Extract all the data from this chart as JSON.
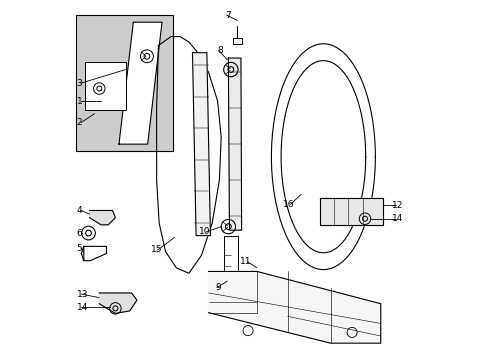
{
  "title": "",
  "bg_color": "#ffffff",
  "line_color": "#000000",
  "gray_box_color": "#cccccc",
  "figsize": [
    4.89,
    3.6
  ],
  "dpi": 100
}
